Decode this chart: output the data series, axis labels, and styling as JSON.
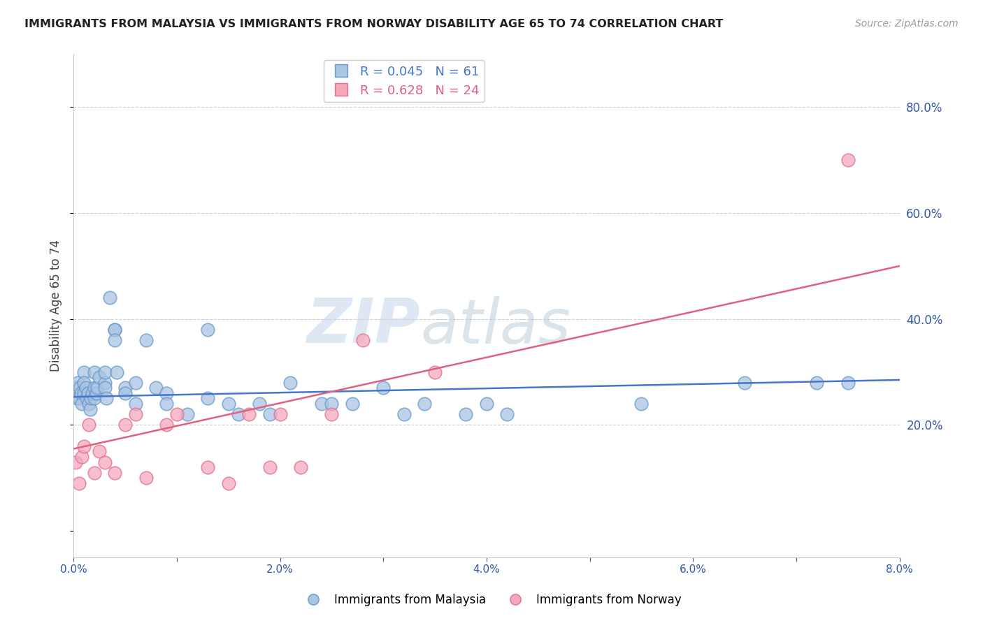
{
  "title": "IMMIGRANTS FROM MALAYSIA VS IMMIGRANTS FROM NORWAY DISABILITY AGE 65 TO 74 CORRELATION CHART",
  "source": "Source: ZipAtlas.com",
  "ylabel": "Disability Age 65 to 74",
  "xlim": [
    0.0,
    0.08
  ],
  "ylim": [
    -0.05,
    0.9
  ],
  "yticks_right": [
    0.2,
    0.4,
    0.6,
    0.8
  ],
  "ytick_labels_right": [
    "20.0%",
    "40.0%",
    "60.0%",
    "80.0%"
  ],
  "xticks": [
    0.0,
    0.01,
    0.02,
    0.03,
    0.04,
    0.05,
    0.06,
    0.07,
    0.08
  ],
  "xtick_labels": [
    "0.0%",
    "",
    "2.0%",
    "",
    "4.0%",
    "",
    "6.0%",
    "",
    "8.0%"
  ],
  "malaysia_color": "#aac4e2",
  "norway_color": "#f5a8bc",
  "malaysia_edge": "#6699cc",
  "norway_edge": "#e07090",
  "trend_malaysia_color": "#4477cc",
  "trend_norway_color": "#e06080",
  "malaysia_R": 0.045,
  "malaysia_N": 61,
  "norway_R": 0.628,
  "norway_N": 24,
  "legend_malaysia": "Immigrants from Malaysia",
  "legend_norway": "Immigrants from Norway",
  "watermark_zip": "ZIP",
  "watermark_atlas": "atlas",
  "background_color": "#ffffff",
  "grid_color": "#cccccc",
  "malaysia_x": [
    0.0002,
    0.0003,
    0.0004,
    0.0005,
    0.0006,
    0.0007,
    0.0008,
    0.001,
    0.001,
    0.001,
    0.0012,
    0.0013,
    0.0014,
    0.0015,
    0.0016,
    0.0017,
    0.0018,
    0.002,
    0.002,
    0.002,
    0.0022,
    0.0023,
    0.0025,
    0.003,
    0.003,
    0.003,
    0.0032,
    0.0035,
    0.004,
    0.004,
    0.004,
    0.0042,
    0.005,
    0.005,
    0.006,
    0.006,
    0.007,
    0.008,
    0.009,
    0.009,
    0.011,
    0.013,
    0.013,
    0.015,
    0.016,
    0.018,
    0.019,
    0.021,
    0.024,
    0.025,
    0.027,
    0.03,
    0.032,
    0.034,
    0.038,
    0.04,
    0.042,
    0.055,
    0.065,
    0.072,
    0.075
  ],
  "malaysia_y": [
    0.27,
    0.25,
    0.28,
    0.25,
    0.27,
    0.26,
    0.24,
    0.3,
    0.28,
    0.26,
    0.27,
    0.25,
    0.26,
    0.24,
    0.23,
    0.25,
    0.26,
    0.3,
    0.27,
    0.25,
    0.26,
    0.27,
    0.29,
    0.28,
    0.3,
    0.27,
    0.25,
    0.44,
    0.38,
    0.38,
    0.36,
    0.3,
    0.27,
    0.26,
    0.28,
    0.24,
    0.36,
    0.27,
    0.26,
    0.24,
    0.22,
    0.38,
    0.25,
    0.24,
    0.22,
    0.24,
    0.22,
    0.28,
    0.24,
    0.24,
    0.24,
    0.27,
    0.22,
    0.24,
    0.22,
    0.24,
    0.22,
    0.24,
    0.28,
    0.28,
    0.28
  ],
  "norway_x": [
    0.0002,
    0.0005,
    0.0008,
    0.001,
    0.0015,
    0.002,
    0.0025,
    0.003,
    0.004,
    0.005,
    0.006,
    0.007,
    0.009,
    0.01,
    0.013,
    0.015,
    0.017,
    0.019,
    0.02,
    0.022,
    0.025,
    0.028,
    0.035,
    0.075
  ],
  "norway_y": [
    0.13,
    0.09,
    0.14,
    0.16,
    0.2,
    0.11,
    0.15,
    0.13,
    0.11,
    0.2,
    0.22,
    0.1,
    0.2,
    0.22,
    0.12,
    0.09,
    0.22,
    0.12,
    0.22,
    0.12,
    0.22,
    0.36,
    0.3,
    0.7
  ],
  "trend_norway_x0": 0.0,
  "trend_norway_y0": 0.155,
  "trend_norway_x1": 0.08,
  "trend_norway_y1": 0.5,
  "trend_malaysia_x0": 0.0,
  "trend_malaysia_y0": 0.253,
  "trend_malaysia_x1": 0.08,
  "trend_malaysia_y1": 0.285
}
